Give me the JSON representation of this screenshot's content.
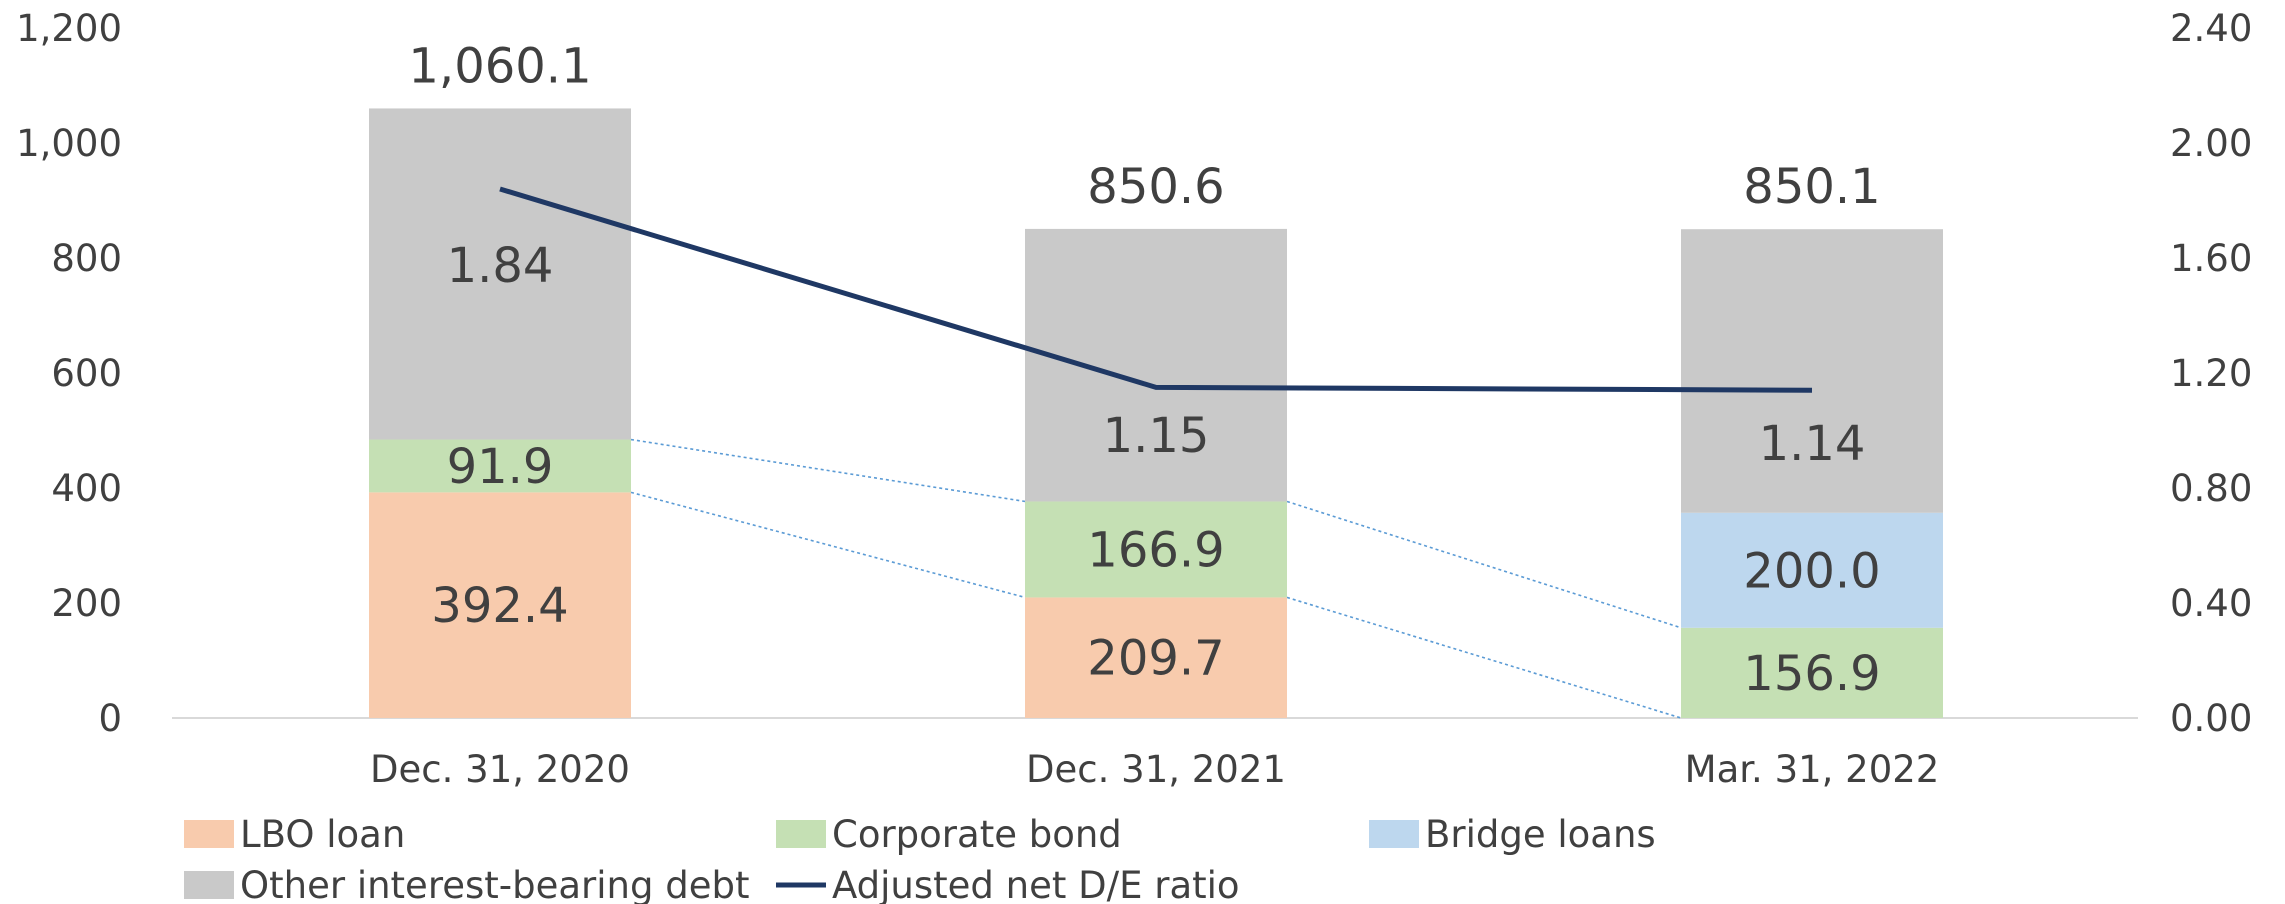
{
  "chart_data": {
    "type": "bar",
    "stacked": true,
    "categories": [
      "Dec. 31, 2020",
      "Dec. 31, 2021",
      "Mar. 31, 2022"
    ],
    "series": [
      {
        "name": "LBO loan",
        "color": "#F8CBAD",
        "values": [
          392.4,
          209.7,
          0
        ]
      },
      {
        "name": "Corporate bond",
        "color": "#C5E0B4",
        "values": [
          91.9,
          166.9,
          156.9
        ]
      },
      {
        "name": "Bridge loans",
        "color": "#BDD7EE",
        "values": [
          0,
          0,
          200.0
        ]
      },
      {
        "name": "Other interest-bearing debt",
        "color": "#C9C9C9",
        "values": [
          575.8,
          474.0,
          493.2
        ]
      }
    ],
    "segment_labels": {
      "LBO loan": [
        "392.4",
        "209.7",
        ""
      ],
      "Corporate bond": [
        "91.9",
        "166.9",
        "156.9"
      ],
      "Bridge loans": [
        "",
        "",
        "200.0"
      ]
    },
    "totals": [
      "1,060.1",
      "850.6",
      "850.1"
    ],
    "total_values": [
      1060.1,
      850.6,
      850.1
    ],
    "line_series": {
      "name": "Adjusted net D/E ratio",
      "color": "#1F3864",
      "values": [
        1.84,
        1.15,
        1.14
      ],
      "labels": [
        "1.84",
        "1.15",
        "1.14"
      ],
      "axis": "right"
    },
    "y_left": {
      "min": 0,
      "max": 1200,
      "ticks": [
        "0",
        "200",
        "400",
        "600",
        "800",
        "1,000",
        "1,200"
      ]
    },
    "y_right": {
      "min": 0,
      "max": 2.4,
      "ticks": [
        "0.00",
        "0.40",
        "0.80",
        "1.20",
        "1.60",
        "2.00",
        "2.40"
      ]
    },
    "legend_position": "bottom",
    "connector_color": "#5B9BD5"
  }
}
